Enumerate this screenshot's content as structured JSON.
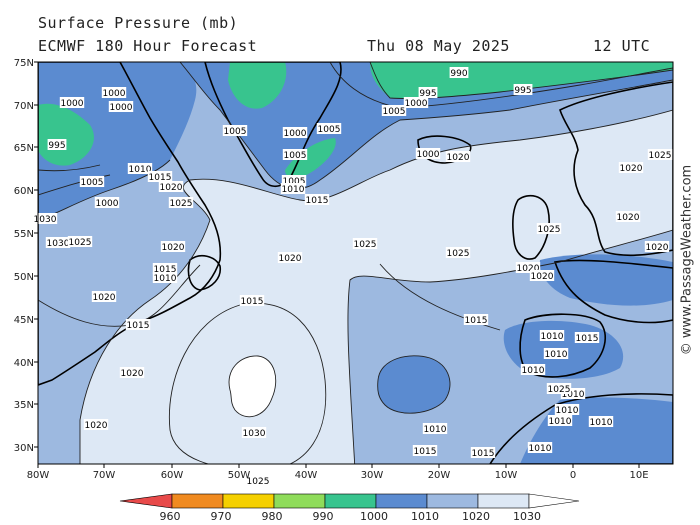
{
  "header": {
    "title_line1": "Surface Pressure (mb)",
    "title_line2": "ECMWF 180 Hour Forecast",
    "date": "Thu 08 May 2025",
    "time": "12 UTC"
  },
  "copyright": "© www.PassageWeather.com",
  "map": {
    "lon_ticks": [
      "80W",
      "70W",
      "60W",
      "50W",
      "40W",
      "30W",
      "20W",
      "10W",
      "0",
      "10E"
    ],
    "lat_ticks": [
      "75N",
      "70N",
      "65N",
      "60N",
      "55N",
      "50N",
      "45N",
      "40N",
      "35N",
      "30N"
    ],
    "fill_colors": {
      "below_1010": "#5b8bd0",
      "1010_1020": "#9db9e0",
      "1020_1030": "#dde8f5",
      "above_1030": "#ffffff",
      "990_1000": "#38c48e",
      "land": "#ffffff"
    },
    "isobar_labels": [
      "1000",
      "1000",
      "1000",
      "1000",
      "995",
      "1005",
      "1005",
      "1010",
      "1015",
      "1020",
      "1025",
      "1030",
      "1030",
      "1025",
      "1020",
      "1015",
      "1010",
      "1015",
      "1020",
      "1020",
      "1015",
      "1020",
      "1025",
      "1030",
      "1025",
      "1020",
      "1025",
      "1020",
      "1010",
      "1015",
      "1015",
      "1010",
      "1010",
      "1020",
      "1000",
      "990",
      "995",
      "1000",
      "1005",
      "1005",
      "1020",
      "1025",
      "1020",
      "1020",
      "1025",
      "1025",
      "1015",
      "1010",
      "1010",
      "1010",
      "1010",
      "1010",
      "1015",
      "1020",
      "1010",
      "1000",
      "1005",
      "995",
      "1005",
      "1010",
      "1015"
    ]
  },
  "legend": {
    "colors": [
      "#e84a4a",
      "#f08a20",
      "#f5d000",
      "#8fdc5a",
      "#38c48e",
      "#5b8bd0",
      "#9db9e0",
      "#dde8f5"
    ],
    "labels": [
      "960",
      "970",
      "980",
      "990",
      "1000",
      "1010",
      "1020",
      "1030"
    ]
  }
}
